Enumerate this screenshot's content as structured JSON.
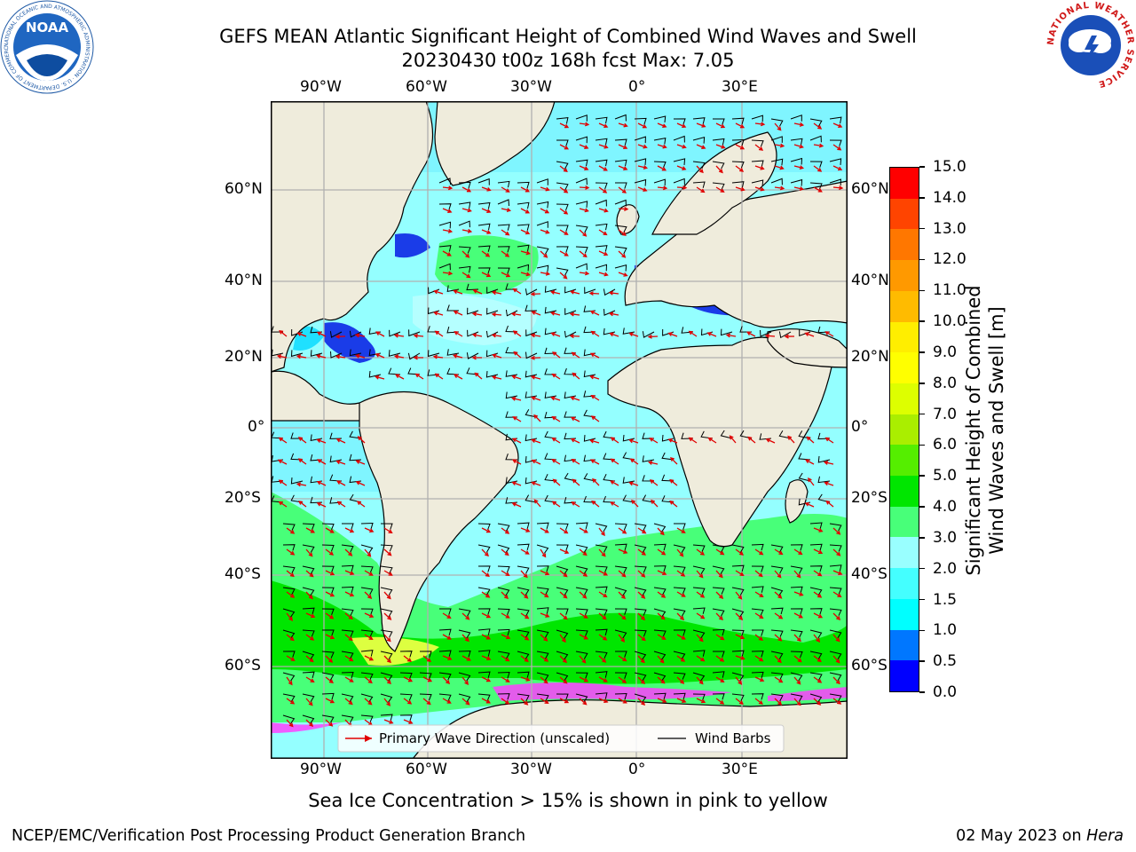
{
  "header": {
    "title_line1": "GEFS MEAN Atlantic Significant Height of Combined Wind Waves and Swell",
    "title_line2": "20230430 t00z 168h fcst   Max: 7.05"
  },
  "logos": {
    "left_text": "NOAA",
    "left_ring_text": "NATIONAL OCEANIC AND ATMOSPHERIC ADMINISTRATION · U.S. DEPARTMENT OF COMMERCE",
    "right_ring_text": "NATIONAL WEATHER SERVICE"
  },
  "map": {
    "lon_labels": [
      "90°W",
      "60°W",
      "30°W",
      "0°",
      "30°E"
    ],
    "lat_labels": [
      "60°N",
      "40°N",
      "20°N",
      "0°",
      "20°S",
      "40°S",
      "60°S"
    ],
    "colors": {
      "land": "#efecdc",
      "ocean_low": "#94ffff",
      "ocean_mid": "#48ff79",
      "ocean_high": "#00e600",
      "wave_arrow": "#e00000",
      "barb": "#000000"
    }
  },
  "legend": {
    "wave_direction": "Primary Wave Direction (unscaled)",
    "wind_barbs": "Wind Barbs"
  },
  "colorbar": {
    "label_line1": "Significant Height of Combined",
    "label_line2": "Wind Waves and Swell [m]",
    "ticks": [
      "15.0",
      "14.0",
      "13.0",
      "12.0",
      "11.0",
      "10.0",
      "9.0",
      "8.0",
      "7.0",
      "6.0",
      "5.0",
      "4.0",
      "3.0",
      "2.0",
      "1.5",
      "1.0",
      "0.5",
      "0.0"
    ],
    "colors_bottom_to_top": [
      "#0000ff",
      "#0077ff",
      "#00ffff",
      "#44ffff",
      "#99ffff",
      "#48ff79",
      "#00e600",
      "#55ee00",
      "#aaee00",
      "#ddff00",
      "#ffff00",
      "#ffee00",
      "#ffbb00",
      "#ff9900",
      "#ff7700",
      "#ff4400",
      "#ff0000"
    ]
  },
  "notes": {
    "sea_ice": "Sea Ice Concentration > 15% is shown in pink to yellow"
  },
  "footer": {
    "left": "NCEP/EMC/Verification Post Processing Product Generation Branch",
    "date": "02 May 2023 on ",
    "machine": "Hera"
  }
}
